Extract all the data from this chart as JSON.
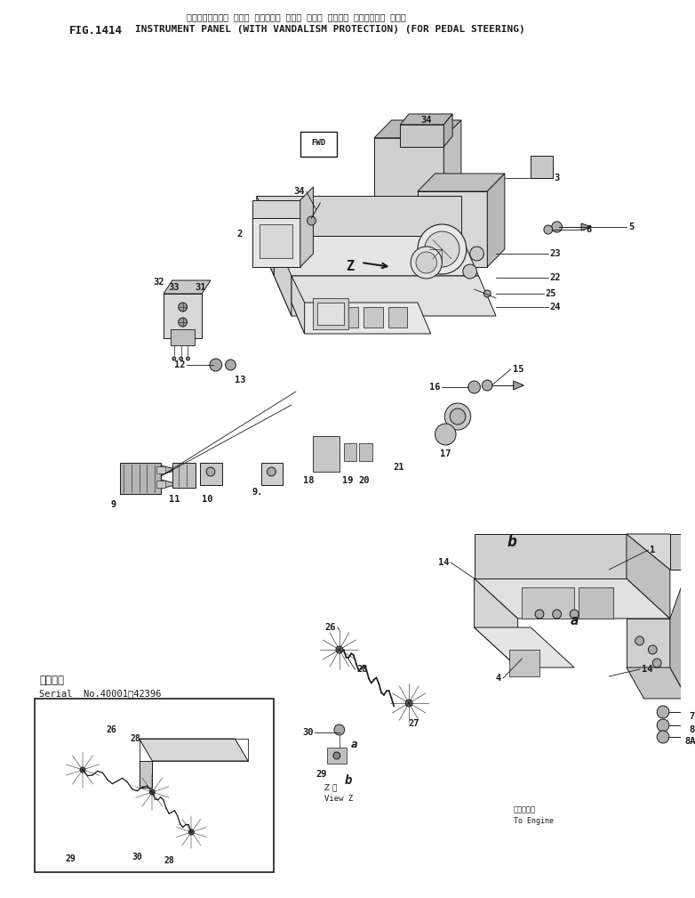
{
  "fig_label": "FIG.1414",
  "title_japanese": "インストルメント パネル （イタズラ ボウシ ツキ） （ペダル ステアリング ヨウ）",
  "title_english": "INSTRUMENT PANEL (WITH VANDALISM PROTECTION) (FOR PEDAL STEERING)",
  "bg_color": "#ffffff",
  "line_color": "#1a1a1a",
  "serial_text_line1": "通用号機",
  "serial_text_line2": "Serial  No.40001～42396",
  "view_z_text": "Z 樯\nView Z",
  "to_engine_text": "エンジンへ\nTo Engine",
  "fwd_text": "FWD",
  "fontsize_title": 8.0,
  "fontsize_parts": 7.5,
  "fontsize_fig": 9
}
